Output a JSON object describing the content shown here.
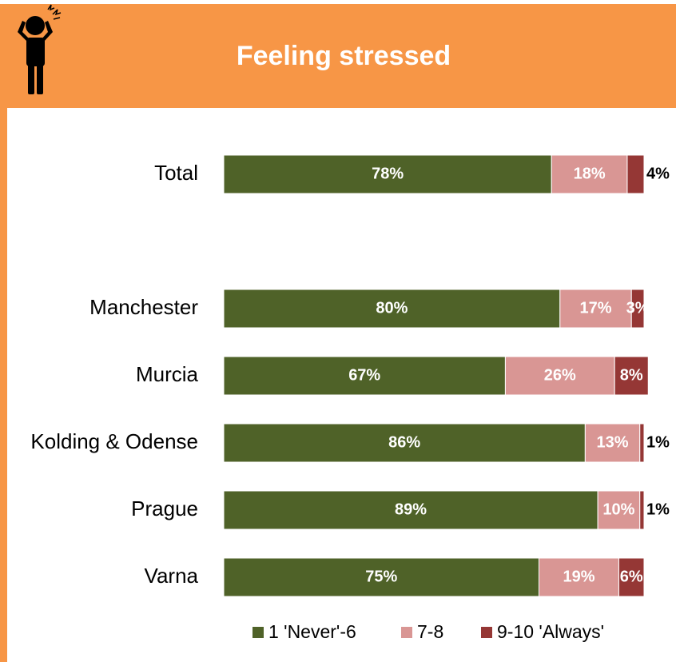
{
  "chart_data": {
    "type": "stacked-barh",
    "title": "Feeling stressed",
    "categories": [
      "Total",
      null,
      "Manchester",
      "Murcia",
      "Kolding & Odense",
      "Prague",
      "Varna"
    ],
    "xlim": [
      0,
      100
    ],
    "series": [
      {
        "name": "1 'Never'-6",
        "color": "#4f6228",
        "values": [
          78,
          null,
          80,
          67,
          86,
          89,
          75
        ],
        "value_labels": [
          "78%",
          null,
          "80%",
          "67%",
          "86%",
          "89%",
          "75%"
        ]
      },
      {
        "name": "7-8",
        "color": "#d99694",
        "values": [
          18,
          null,
          17,
          26,
          13,
          10,
          19
        ],
        "value_labels": [
          "18%",
          null,
          "17%",
          "26%",
          "13%",
          "10%",
          "19%"
        ]
      },
      {
        "name": "9-10 'Always'",
        "color": "#953735",
        "values": [
          4,
          null,
          3,
          8,
          1,
          1,
          6
        ],
        "value_labels": [
          "4%",
          null,
          "3%",
          "8%",
          "1%",
          "1%",
          "6%"
        ]
      }
    ]
  }
}
